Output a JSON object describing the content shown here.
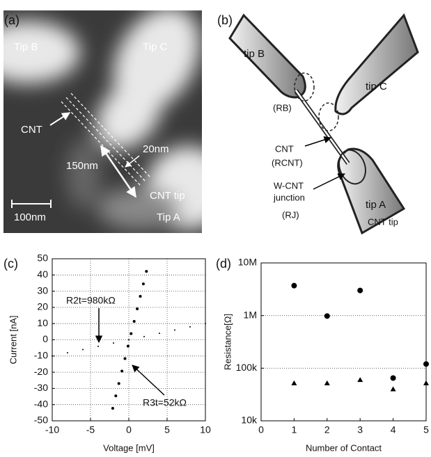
{
  "panel_a": {
    "label": "(a)",
    "tip_b": "Tip B",
    "tip_c": "Tip C",
    "cnt": "CNT",
    "length": "150nm",
    "width": "20nm",
    "cnt_tip": "CNT tip",
    "tip_a": "Tip A",
    "scale_bar": "100nm"
  },
  "panel_b": {
    "label": "(b)",
    "tip_b": "tip B",
    "tip_c": "tip C",
    "r_b": "(RB)",
    "cnt": "CNT",
    "r_cnt": "(RCNT)",
    "junction_1": "W-CNT",
    "junction_2": "junction",
    "r_j": "(RJ)",
    "tip_a": "tip A",
    "cnt_tip": "CNT tip"
  },
  "chart_data": [
    {
      "type": "scatter",
      "label": "(c)",
      "xlabel": "Voltage [mV]",
      "ylabel": "Current [nA]",
      "xlim": [
        -10,
        10
      ],
      "xticks": [
        -10,
        -5,
        0,
        5,
        10
      ],
      "ylim": [
        -50,
        50
      ],
      "yticks": [
        -50,
        -40,
        -30,
        -20,
        -10,
        0,
        10,
        20,
        30,
        40,
        50
      ],
      "grid": "both",
      "log_y": false,
      "annotations": [
        "R2t=980kΩ",
        "R3t=52kΩ"
      ],
      "series": [
        {
          "color": "#000000",
          "marker": "dot",
          "x": [
            -10,
            -8,
            -6,
            -4,
            -2,
            0,
            2,
            4,
            6,
            8,
            10
          ],
          "values": [
            -10,
            -8,
            -6,
            -4,
            -2,
            0,
            2,
            4,
            6,
            8,
            10
          ]
        },
        {
          "color": "#000000",
          "marker": "dot-large",
          "x": [
            -2.1,
            -1.7,
            -1.3,
            -0.9,
            -0.5,
            -0.1,
            0.3,
            0.7,
            1.1,
            1.5,
            1.9,
            2.3
          ],
          "values": [
            -42.3,
            -34.6,
            -27,
            -19.3,
            -11.6,
            -3.9,
            3.8,
            11.4,
            19.1,
            26.8,
            34.5,
            42.2
          ]
        }
      ]
    },
    {
      "type": "scatter",
      "label": "(d)",
      "xlabel": "Number of Contact",
      "ylabel": "Resistance[Ω]",
      "xlim": [
        0,
        5
      ],
      "xticks": [
        0,
        1,
        2,
        3,
        4,
        5
      ],
      "ylim": [
        10000,
        10000000
      ],
      "yticks": [
        {
          "value": 10000,
          "label": "10k"
        },
        {
          "value": 100000,
          "label": "100k"
        },
        {
          "value": 1000000,
          "label": "1M"
        },
        {
          "value": 10000000,
          "label": "10M"
        }
      ],
      "grid": "y",
      "log_y": true,
      "series": [
        {
          "color": "#000000",
          "marker": "circle",
          "x": [
            1,
            2,
            3,
            4,
            5
          ],
          "values": [
            3700000,
            980000,
            3000000,
            65000,
            120000
          ]
        },
        {
          "color": "#000000",
          "marker": "triangle",
          "x": [
            1,
            2,
            3,
            4,
            5
          ],
          "values": [
            52000,
            52000,
            60000,
            40000,
            52000
          ]
        }
      ]
    }
  ]
}
